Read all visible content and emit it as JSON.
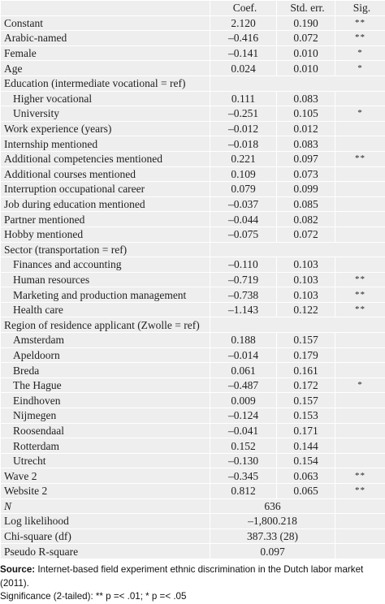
{
  "table": {
    "header": [
      "Coef.",
      "Std. err.",
      "Sig."
    ],
    "rows": [
      {
        "label": "Constant",
        "coef": "2.120",
        "se": "0.190",
        "sig": "**"
      },
      {
        "label": "Arabic-named",
        "coef": "–0.416",
        "se": "0.072",
        "sig": "**"
      },
      {
        "label": "Female",
        "coef": "–0.141",
        "se": "0.010",
        "sig": "*"
      },
      {
        "label": "Age",
        "coef": "0.024",
        "se": "0.010",
        "sig": "*"
      },
      {
        "label": "Education (intermediate vocational = ref)",
        "rows": [
          {
            "label": "Higher vocational",
            "coef": "0.111",
            "se": "0.083"
          },
          {
            "label": "University",
            "coef": "–0.251",
            "se": "0.105",
            "sig": "*"
          }
        ]
      },
      {
        "label": "Work experience (years)",
        "coef": "–0.012",
        "se": "0.012"
      },
      {
        "label": "Internship mentioned",
        "coef": "–0.018",
        "se": "0.083"
      },
      {
        "label": "Additional competencies mentioned",
        "coef": "0.221",
        "se": "0.097",
        "sig": "**"
      },
      {
        "label": "Additional courses mentioned",
        "coef": "0.109",
        "se": "0.073"
      },
      {
        "label": "Interruption occupational career",
        "coef": "0.079",
        "se": "0.099"
      },
      {
        "label": "Job during education mentioned",
        "coef": "–0.037",
        "se": "0.085"
      },
      {
        "label": "Partner mentioned",
        "coef": "–0.044",
        "se": "0.082"
      },
      {
        "label": "Hobby mentioned",
        "coef": "–0.075",
        "se": "0.072"
      },
      {
        "label": "Sector (transportation = ref)",
        "rows": [
          {
            "label": "Finances and accounting",
            "coef": "–0.110",
            "se": "0.103"
          },
          {
            "label": "Human resources",
            "coef": "–0.719",
            "se": "0.103",
            "sig": "**"
          },
          {
            "label": "Marketing and production management",
            "coef": "–0.738",
            "se": "0.103",
            "sig": "**"
          },
          {
            "label": "Health care",
            "coef": "–1.143",
            "se": "0.122",
            "sig": "**"
          }
        ]
      },
      {
        "label": "Region of residence applicant (Zwolle = ref)",
        "rows": [
          {
            "label": "Amsterdam",
            "coef": "0.188",
            "se": "0.157"
          },
          {
            "label": "Apeldoorn",
            "coef": "–0.014",
            "se": "0.179"
          },
          {
            "label": "Breda",
            "coef": "0.061",
            "se": "0.161"
          },
          {
            "label": "The Hague",
            "coef": "–0.487",
            "se": "0.172",
            "sig": "*"
          },
          {
            "label": "Eindhoven",
            "coef": "0.009",
            "se": "0.157"
          },
          {
            "label": "Nijmegen",
            "coef": "–0.124",
            "se": "0.153"
          },
          {
            "label": "Roosendaal",
            "coef": "–0.041",
            "se": "0.171"
          },
          {
            "label": "Rotterdam",
            "coef": "0.152",
            "se": "0.144"
          },
          {
            "label": "Utrecht",
            "coef": "–0.130",
            "se": "0.154"
          }
        ]
      },
      {
        "label": "Wave 2",
        "coef": "–0.345",
        "se": "0.063",
        "sig": "**"
      },
      {
        "label": "Website 2",
        "coef": "0.812",
        "se": "0.065",
        "sig": "**"
      }
    ],
    "stats": [
      {
        "label": "N",
        "value": "636"
      },
      {
        "label": "Log likelihood",
        "value": "–1,800.218"
      },
      {
        "label": "Chi-square (df)",
        "value": "387.33 (28)"
      },
      {
        "label": "Pseudo R-square",
        "value": "0.097"
      }
    ]
  },
  "note": {
    "source_label": "Source:",
    "source_text": "Internet-based field experiment ethnic discrimination in the Dutch labor market (2011).",
    "significance": "Significance (2-tailed): ** p =< .01; * p =< .05"
  }
}
